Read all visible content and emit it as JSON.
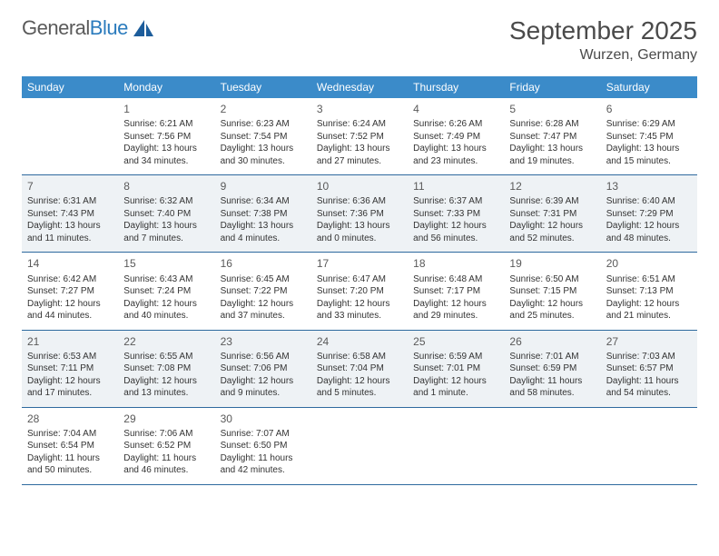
{
  "logo": {
    "part1": "General",
    "part2": "Blue"
  },
  "title": "September 2025",
  "location": "Wurzen, Germany",
  "colors": {
    "header_bg": "#3b8bc9",
    "header_text": "#ffffff",
    "border": "#2e6a9e",
    "shade_bg": "#eef2f5",
    "text": "#333333",
    "logo_gray": "#5a5a5a",
    "logo_blue": "#2b7bbd",
    "sail_fill": "#1d5d9b"
  },
  "day_names": [
    "Sunday",
    "Monday",
    "Tuesday",
    "Wednesday",
    "Thursday",
    "Friday",
    "Saturday"
  ],
  "start_offset": 1,
  "days": [
    {
      "n": "1",
      "sr": "6:21 AM",
      "ss": "7:56 PM",
      "dl": "13 hours and 34 minutes."
    },
    {
      "n": "2",
      "sr": "6:23 AM",
      "ss": "7:54 PM",
      "dl": "13 hours and 30 minutes."
    },
    {
      "n": "3",
      "sr": "6:24 AM",
      "ss": "7:52 PM",
      "dl": "13 hours and 27 minutes."
    },
    {
      "n": "4",
      "sr": "6:26 AM",
      "ss": "7:49 PM",
      "dl": "13 hours and 23 minutes."
    },
    {
      "n": "5",
      "sr": "6:28 AM",
      "ss": "7:47 PM",
      "dl": "13 hours and 19 minutes."
    },
    {
      "n": "6",
      "sr": "6:29 AM",
      "ss": "7:45 PM",
      "dl": "13 hours and 15 minutes."
    },
    {
      "n": "7",
      "sr": "6:31 AM",
      "ss": "7:43 PM",
      "dl": "13 hours and 11 minutes."
    },
    {
      "n": "8",
      "sr": "6:32 AM",
      "ss": "7:40 PM",
      "dl": "13 hours and 7 minutes."
    },
    {
      "n": "9",
      "sr": "6:34 AM",
      "ss": "7:38 PM",
      "dl": "13 hours and 4 minutes."
    },
    {
      "n": "10",
      "sr": "6:36 AM",
      "ss": "7:36 PM",
      "dl": "13 hours and 0 minutes."
    },
    {
      "n": "11",
      "sr": "6:37 AM",
      "ss": "7:33 PM",
      "dl": "12 hours and 56 minutes."
    },
    {
      "n": "12",
      "sr": "6:39 AM",
      "ss": "7:31 PM",
      "dl": "12 hours and 52 minutes."
    },
    {
      "n": "13",
      "sr": "6:40 AM",
      "ss": "7:29 PM",
      "dl": "12 hours and 48 minutes."
    },
    {
      "n": "14",
      "sr": "6:42 AM",
      "ss": "7:27 PM",
      "dl": "12 hours and 44 minutes."
    },
    {
      "n": "15",
      "sr": "6:43 AM",
      "ss": "7:24 PM",
      "dl": "12 hours and 40 minutes."
    },
    {
      "n": "16",
      "sr": "6:45 AM",
      "ss": "7:22 PM",
      "dl": "12 hours and 37 minutes."
    },
    {
      "n": "17",
      "sr": "6:47 AM",
      "ss": "7:20 PM",
      "dl": "12 hours and 33 minutes."
    },
    {
      "n": "18",
      "sr": "6:48 AM",
      "ss": "7:17 PM",
      "dl": "12 hours and 29 minutes."
    },
    {
      "n": "19",
      "sr": "6:50 AM",
      "ss": "7:15 PM",
      "dl": "12 hours and 25 minutes."
    },
    {
      "n": "20",
      "sr": "6:51 AM",
      "ss": "7:13 PM",
      "dl": "12 hours and 21 minutes."
    },
    {
      "n": "21",
      "sr": "6:53 AM",
      "ss": "7:11 PM",
      "dl": "12 hours and 17 minutes."
    },
    {
      "n": "22",
      "sr": "6:55 AM",
      "ss": "7:08 PM",
      "dl": "12 hours and 13 minutes."
    },
    {
      "n": "23",
      "sr": "6:56 AM",
      "ss": "7:06 PM",
      "dl": "12 hours and 9 minutes."
    },
    {
      "n": "24",
      "sr": "6:58 AM",
      "ss": "7:04 PM",
      "dl": "12 hours and 5 minutes."
    },
    {
      "n": "25",
      "sr": "6:59 AM",
      "ss": "7:01 PM",
      "dl": "12 hours and 1 minute."
    },
    {
      "n": "26",
      "sr": "7:01 AM",
      "ss": "6:59 PM",
      "dl": "11 hours and 58 minutes."
    },
    {
      "n": "27",
      "sr": "7:03 AM",
      "ss": "6:57 PM",
      "dl": "11 hours and 54 minutes."
    },
    {
      "n": "28",
      "sr": "7:04 AM",
      "ss": "6:54 PM",
      "dl": "11 hours and 50 minutes."
    },
    {
      "n": "29",
      "sr": "7:06 AM",
      "ss": "6:52 PM",
      "dl": "11 hours and 46 minutes."
    },
    {
      "n": "30",
      "sr": "7:07 AM",
      "ss": "6:50 PM",
      "dl": "11 hours and 42 minutes."
    }
  ],
  "labels": {
    "sunrise": "Sunrise:",
    "sunset": "Sunset:",
    "daylight": "Daylight:"
  },
  "shaded_weeks": [
    1,
    3
  ]
}
